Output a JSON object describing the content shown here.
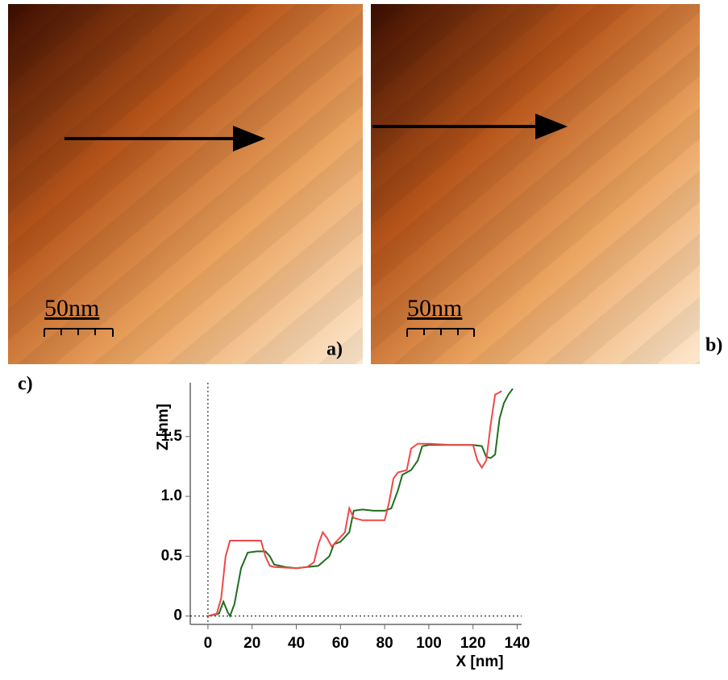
{
  "panels": {
    "a": {
      "label": "a)",
      "scale": "50nm"
    },
    "b": {
      "label": "b)",
      "scale": "50nm"
    },
    "c": {
      "label": "c)"
    }
  },
  "chart_data": {
    "type": "line",
    "x_label": "X [nm]",
    "y_label": "Z [nm]",
    "xlim": [
      -8,
      142
    ],
    "ylim": [
      -0.07,
      1.95
    ],
    "xticks": [
      0,
      20,
      40,
      60,
      80,
      100,
      120,
      140
    ],
    "yticks": [
      0,
      0.5,
      {
        "value": 1,
        "label": "1.0"
      },
      1.5
    ],
    "series": [
      {
        "color": "#1e6e1e",
        "x": [
          0,
          5,
          7,
          9,
          10,
          12,
          15,
          18,
          22,
          26,
          28,
          30,
          35,
          40,
          45,
          50,
          55,
          57,
          60,
          62,
          64,
          66,
          70,
          75,
          80,
          83,
          86,
          88,
          92,
          95,
          97,
          100,
          110,
          120,
          124,
          126,
          128,
          130,
          132,
          134,
          136,
          138
        ],
        "values": [
          0,
          0.02,
          0.12,
          0.03,
          0,
          0.1,
          0.4,
          0.53,
          0.54,
          0.54,
          0.5,
          0.43,
          0.41,
          0.4,
          0.41,
          0.42,
          0.5,
          0.6,
          0.62,
          0.66,
          0.7,
          0.88,
          0.89,
          0.88,
          0.88,
          0.9,
          1.05,
          1.18,
          1.22,
          1.3,
          1.42,
          1.43,
          1.43,
          1.43,
          1.42,
          1.33,
          1.32,
          1.35,
          1.65,
          1.78,
          1.85,
          1.9
        ]
      },
      {
        "color": "#f04848",
        "x": [
          0,
          4,
          6,
          8,
          10,
          15,
          20,
          24,
          26,
          28,
          30,
          40,
          45,
          48,
          50,
          52,
          54,
          56,
          58,
          62,
          64,
          66,
          70,
          75,
          80,
          82,
          84,
          86,
          90,
          92,
          95,
          100,
          110,
          120,
          122,
          124,
          126,
          128,
          130,
          133
        ],
        "values": [
          0,
          0.02,
          0.15,
          0.5,
          0.63,
          0.63,
          0.63,
          0.63,
          0.5,
          0.42,
          0.41,
          0.4,
          0.41,
          0.45,
          0.6,
          0.7,
          0.65,
          0.58,
          0.62,
          0.7,
          0.9,
          0.82,
          0.8,
          0.8,
          0.8,
          0.95,
          1.15,
          1.2,
          1.22,
          1.4,
          1.44,
          1.44,
          1.43,
          1.43,
          1.3,
          1.24,
          1.3,
          1.6,
          1.85,
          1.88
        ]
      }
    ]
  }
}
